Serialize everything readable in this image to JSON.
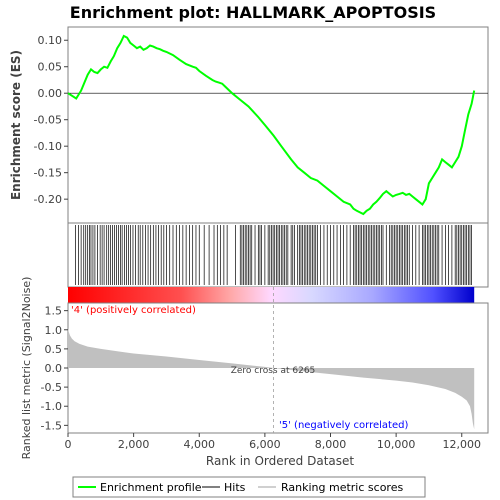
{
  "chart_data": {
    "type": "line",
    "title": "Enrichment plot: HALLMARK_APOPTOSIS",
    "es_panel": {
      "ylabel": "Enrichment score (ES)",
      "ylim": [
        -0.245,
        0.125
      ],
      "yticks": [
        -0.2,
        -0.15,
        -0.1,
        -0.05,
        0.0,
        0.05,
        0.1
      ],
      "ytick_labels": [
        "-0.20",
        "-0.15",
        "-0.10",
        "-0.05",
        "0.00",
        "0.05",
        "0.10"
      ],
      "series": [
        {
          "name": "Enrichment profile",
          "color": "#00ff00",
          "x": [
            0,
            250,
            400,
            500,
            600,
            700,
            800,
            900,
            1000,
            1100,
            1200,
            1300,
            1400,
            1500,
            1600,
            1700,
            1800,
            1900,
            2000,
            2100,
            2200,
            2300,
            2400,
            2500,
            2600,
            2700,
            2800,
            2900,
            3000,
            3100,
            3200,
            3400,
            3600,
            3800,
            3900,
            4000,
            4200,
            4400,
            4500,
            4600,
            4700,
            4800,
            5000,
            5200,
            5500,
            5800,
            6000,
            6265,
            6500,
            6800,
            7000,
            7200,
            7400,
            7600,
            7800,
            8000,
            8200,
            8400,
            8600,
            8700,
            8800,
            8900,
            9000,
            9100,
            9200,
            9300,
            9400,
            9500,
            9600,
            9700,
            9800,
            9900,
            10000,
            10100,
            10200,
            10300,
            10400,
            10500,
            10600,
            10700,
            10800,
            10900,
            11000,
            11100,
            11200,
            11300,
            11400,
            11500,
            11600,
            11700,
            11800,
            11900,
            12000,
            12100,
            12200,
            12300,
            12380
          ],
          "values": [
            0.0,
            -0.01,
            0.005,
            0.02,
            0.035,
            0.045,
            0.04,
            0.038,
            0.045,
            0.05,
            0.048,
            0.06,
            0.07,
            0.085,
            0.095,
            0.108,
            0.105,
            0.095,
            0.09,
            0.085,
            0.088,
            0.082,
            0.085,
            0.09,
            0.088,
            0.085,
            0.083,
            0.08,
            0.078,
            0.075,
            0.072,
            0.063,
            0.055,
            0.05,
            0.048,
            0.042,
            0.033,
            0.025,
            0.022,
            0.02,
            0.018,
            0.012,
            0.0,
            -0.01,
            -0.025,
            -0.045,
            -0.06,
            -0.08,
            -0.1,
            -0.125,
            -0.14,
            -0.15,
            -0.16,
            -0.165,
            -0.175,
            -0.185,
            -0.195,
            -0.205,
            -0.21,
            -0.218,
            -0.222,
            -0.225,
            -0.228,
            -0.222,
            -0.218,
            -0.21,
            -0.205,
            -0.198,
            -0.19,
            -0.185,
            -0.19,
            -0.195,
            -0.192,
            -0.19,
            -0.188,
            -0.192,
            -0.19,
            -0.195,
            -0.2,
            -0.205,
            -0.21,
            -0.2,
            -0.17,
            -0.16,
            -0.15,
            -0.14,
            -0.125,
            -0.13,
            -0.135,
            -0.14,
            -0.13,
            -0.12,
            -0.1,
            -0.07,
            -0.04,
            -0.02,
            0.005
          ]
        }
      ]
    },
    "hits": {
      "name": "Hits",
      "positions": [
        230,
        320,
        400,
        480,
        540,
        600,
        660,
        700,
        760,
        820,
        900,
        980,
        1040,
        1100,
        1180,
        1240,
        1300,
        1360,
        1420,
        1480,
        1540,
        1600,
        1650,
        1720,
        1780,
        1840,
        1900,
        1980,
        2060,
        2140,
        2200,
        2280,
        2360,
        2440,
        2520,
        2600,
        2680,
        2760,
        2840,
        2920,
        3000,
        3100,
        3200,
        3300,
        3400,
        3500,
        3600,
        3700,
        3800,
        3900,
        4000,
        4150,
        4300,
        4450,
        4550,
        4650,
        4750,
        4850,
        5100,
        5250,
        5300,
        5350,
        5400,
        5450,
        5500,
        5550,
        5600,
        5700,
        5800,
        5850,
        5900,
        6000,
        6100,
        6150,
        6200,
        6250,
        6300,
        6350,
        6400,
        6450,
        6500,
        6550,
        6600,
        6650,
        6700,
        6800,
        6850,
        6900,
        7000,
        7050,
        7100,
        7150,
        7200,
        7250,
        7300,
        7350,
        7400,
        7450,
        7500,
        7550,
        7600,
        7700,
        7800,
        7900,
        8000,
        8100,
        8200,
        8300,
        8400,
        8500,
        8600,
        8700,
        8750,
        8800,
        8850,
        8900,
        8950,
        9000,
        9050,
        9100,
        9150,
        9200,
        9250,
        9300,
        9350,
        9400,
        9450,
        9500,
        9550,
        9600,
        9700,
        9800,
        9850,
        9900,
        9950,
        10000,
        10050,
        10100,
        10150,
        10200,
        10250,
        10300,
        10350,
        10400,
        10500,
        10600,
        10700,
        10800,
        10850,
        10900,
        10950,
        11000,
        11050,
        11100,
        11150,
        11200,
        11250,
        11300,
        11400,
        11500,
        11600,
        11700,
        11800,
        11850,
        11900,
        11950,
        12000,
        12050,
        12100,
        12150,
        12200,
        12250,
        12300
      ]
    },
    "ranked_panel": {
      "ylabel": "Ranked list metric (Signal2Noise)",
      "ylim": [
        -1.7,
        1.7
      ],
      "yticks": [
        -1.5,
        -1.0,
        -0.5,
        0.0,
        0.5,
        1.0,
        1.5
      ],
      "ytick_labels": [
        "-1.5",
        "-1.0",
        "-0.5",
        "0.0",
        "0.5",
        "1.0",
        "1.5"
      ],
      "series": [
        {
          "name": "Ranking metric scores",
          "color": "#c0c0c0",
          "x": [
            0,
            20,
            60,
            120,
            200,
            350,
            600,
            1000,
            1500,
            2000,
            3000,
            4000,
            5000,
            6000,
            6265,
            7000,
            8000,
            9000,
            10000,
            10500,
            11000,
            11500,
            11800,
            12000,
            12150,
            12250,
            12300,
            12340,
            12380
          ],
          "values": [
            1.05,
            0.95,
            0.85,
            0.77,
            0.7,
            0.63,
            0.56,
            0.5,
            0.44,
            0.38,
            0.3,
            0.21,
            0.12,
            0.03,
            0.0,
            -0.07,
            -0.16,
            -0.25,
            -0.33,
            -0.38,
            -0.45,
            -0.55,
            -0.65,
            -0.75,
            -0.85,
            -1.0,
            -1.2,
            -1.45,
            -1.6
          ]
        }
      ],
      "zero_cross_label": "Zero cross at 6265",
      "zero_cross_x": 6265,
      "positive_label": "'4' (positively correlated)",
      "negative_label": "'5' (negatively correlated)"
    },
    "xaxis": {
      "xlabel": "Rank in Ordered Dataset",
      "xlim": [
        0,
        12800
      ],
      "xticks": [
        0,
        2000,
        4000,
        6000,
        8000,
        10000,
        12000
      ],
      "xtick_labels": [
        "0",
        "2,000",
        "4,000",
        "6,000",
        "8,000",
        "10,000",
        "12,000"
      ]
    },
    "legend": {
      "placement": "bottom",
      "entries": [
        {
          "name": "Enrichment profile",
          "color": "#00ff00"
        },
        {
          "name": "Hits",
          "color": "#000000"
        },
        {
          "name": "Ranking metric scores",
          "color": "#c0c0c0"
        }
      ]
    },
    "colors": {
      "positive": "#ff0000",
      "negative": "#0000ff",
      "zero_line": "#000000"
    }
  }
}
